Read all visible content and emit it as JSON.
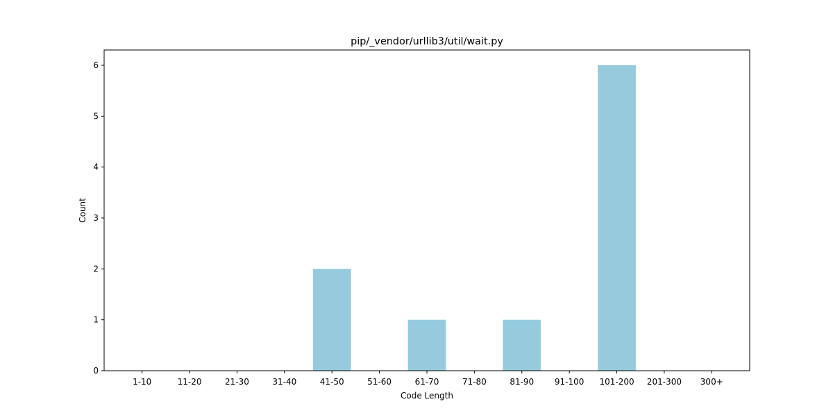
{
  "chart_data": {
    "type": "bar",
    "title": "pip/_vendor/urllib3/util/wait.py",
    "xlabel": "Code Length",
    "ylabel": "Count",
    "categories": [
      "1-10",
      "11-20",
      "21-30",
      "31-40",
      "41-50",
      "51-60",
      "61-70",
      "71-80",
      "81-90",
      "91-100",
      "101-200",
      "201-300",
      "300+"
    ],
    "values": [
      0,
      0,
      0,
      0,
      2,
      0,
      1,
      0,
      1,
      0,
      6,
      0,
      0
    ],
    "ylim": [
      0,
      6.3
    ],
    "yticks": [
      0,
      1,
      2,
      3,
      4,
      5,
      6
    ],
    "grid": false,
    "legend": "none",
    "bar_color": "#96cadd"
  }
}
